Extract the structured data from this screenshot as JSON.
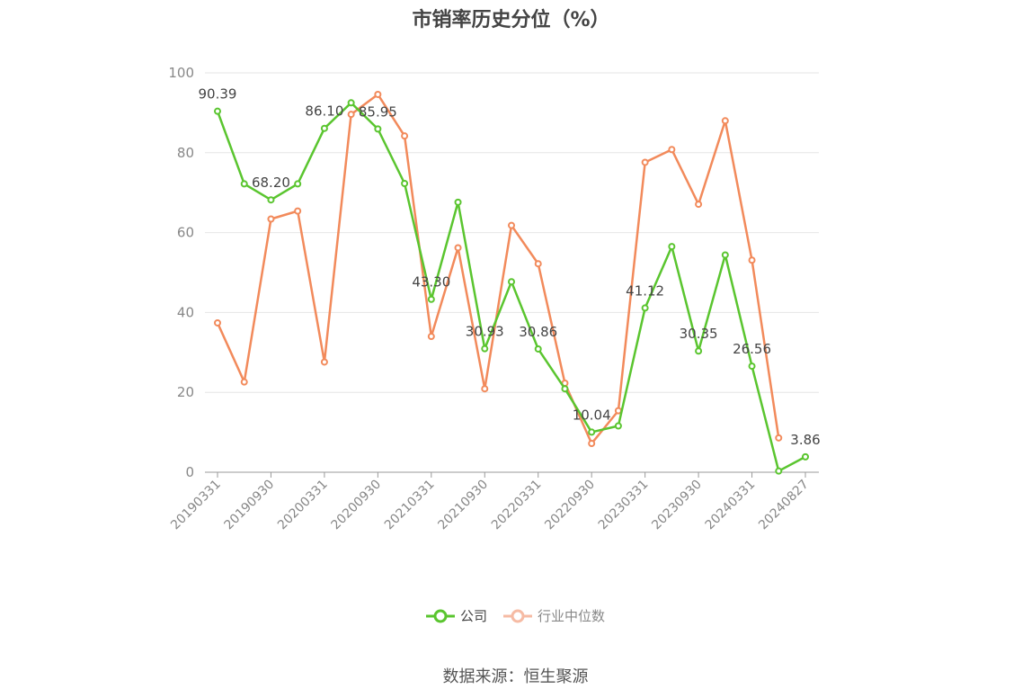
{
  "chart_data": {
    "type": "line",
    "title": "市销率历史分位（%）",
    "ylim": [
      0,
      100
    ],
    "yticks": [
      0,
      20,
      40,
      60,
      80,
      100
    ],
    "grid": true,
    "x_tick_labels": [
      "20190331",
      "20190930",
      "20200331",
      "20200930",
      "20210331",
      "20210930",
      "20220331",
      "20220930",
      "20230331",
      "20230930",
      "20240331",
      "20240827"
    ],
    "x": [
      "20190331",
      "20190630",
      "20190930",
      "20191231",
      "20200331",
      "20200630",
      "20200930",
      "20201231",
      "20210331",
      "20210630",
      "20210930",
      "20211231",
      "20220331",
      "20220630",
      "20220930",
      "20221231",
      "20230331",
      "20230630",
      "20230930",
      "20231231",
      "20240331",
      "20240630",
      "20240827"
    ],
    "series": [
      {
        "name": "公司",
        "color": "#5ac52f",
        "values": [
          90.39,
          72.2,
          68.2,
          72.2,
          86.1,
          92.5,
          85.95,
          72.3,
          43.3,
          67.6,
          30.93,
          47.7,
          30.86,
          20.9,
          10.04,
          11.6,
          41.12,
          56.5,
          30.35,
          54.4,
          26.56,
          0.3,
          3.86
        ]
      },
      {
        "name": "行业中位数",
        "color": "#f28a5b",
        "values": [
          37.4,
          22.6,
          63.4,
          65.4,
          27.6,
          89.6,
          94.6,
          84.2,
          34.0,
          56.2,
          20.9,
          61.8,
          52.2,
          22.3,
          7.2,
          15.4,
          77.6,
          80.8,
          67.1,
          88.0,
          53.1,
          8.6,
          null
        ]
      }
    ],
    "data_labels": [
      {
        "index": 0,
        "text": "90.39"
      },
      {
        "index": 2,
        "text": "68.20"
      },
      {
        "index": 4,
        "text": "86.10"
      },
      {
        "index": 6,
        "text": "85.95"
      },
      {
        "index": 8,
        "text": "43.30"
      },
      {
        "index": 10,
        "text": "30.93"
      },
      {
        "index": 12,
        "text": "30.86"
      },
      {
        "index": 14,
        "text": "10.04"
      },
      {
        "index": 16,
        "text": "41.12"
      },
      {
        "index": 18,
        "text": "30.35"
      },
      {
        "index": 20,
        "text": "26.56"
      },
      {
        "index": 22,
        "text": "3.86"
      }
    ],
    "legend_position": "bottom-center"
  },
  "legend": {
    "company": "公司",
    "industry": "行业中位数"
  },
  "source": "数据来源：恒生聚源"
}
